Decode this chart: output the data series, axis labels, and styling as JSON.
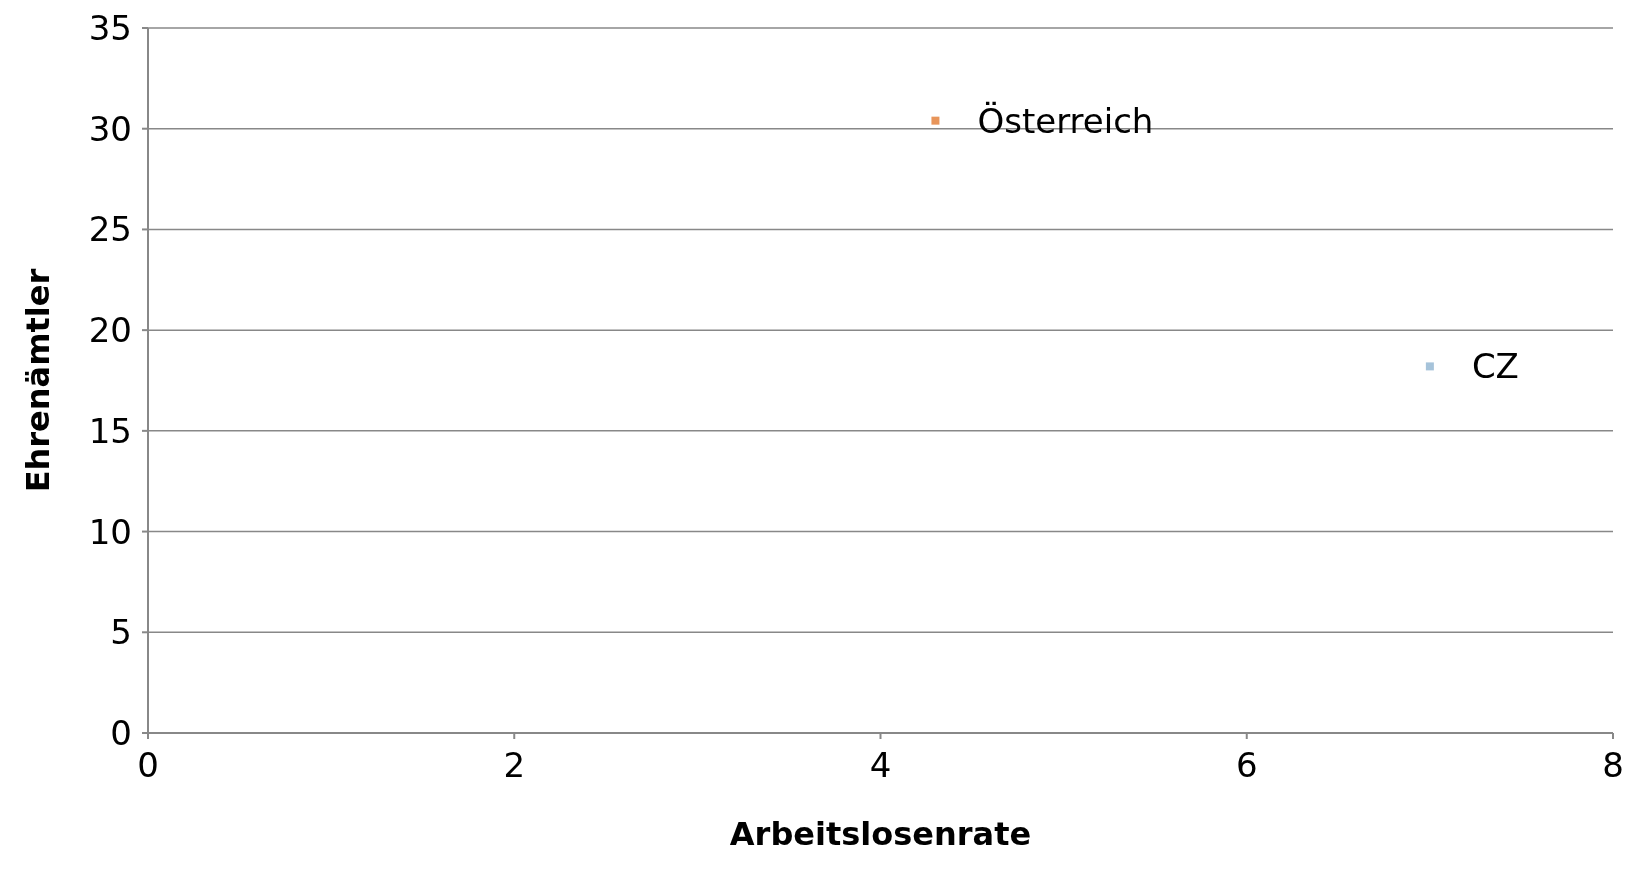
{
  "chart_data": {
    "type": "scatter",
    "xlabel": "Arbeitslosenrate",
    "ylabel": "Ehrenämtler",
    "xlim": [
      0,
      8
    ],
    "xticks": [
      0,
      2,
      4,
      6,
      8
    ],
    "ylim": [
      0,
      35
    ],
    "yticks": [
      0,
      5,
      10,
      15,
      20,
      25,
      30,
      35
    ],
    "grid": "y",
    "legend": false,
    "marker": "square",
    "series": [
      {
        "name": "Österreich",
        "color": "#e8955a",
        "x": [
          4.3
        ],
        "values": [
          30.4
        ]
      },
      {
        "name": "CZ",
        "color": "#a6c3da",
        "x": [
          7.0
        ],
        "values": [
          18.2
        ]
      }
    ]
  }
}
